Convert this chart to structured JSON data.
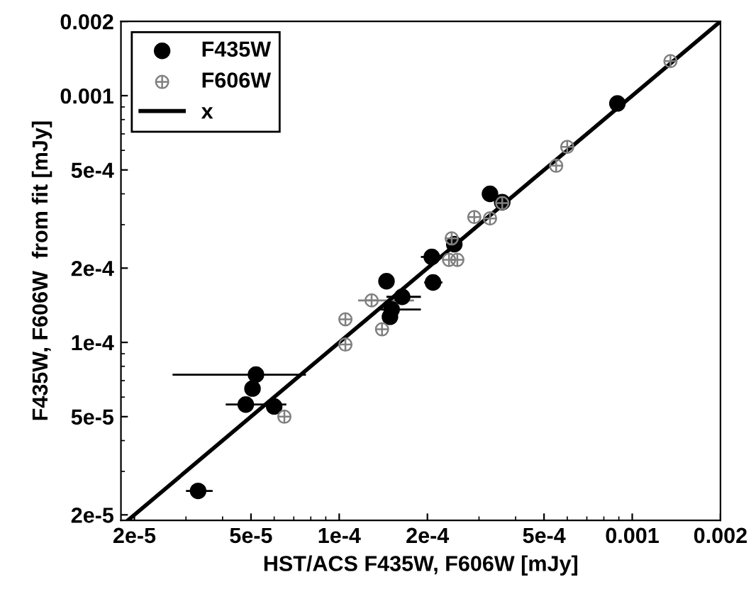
{
  "chart_data": {
    "type": "scatter",
    "xlabel": "HST/ACS F435W, F606W [mJy]",
    "ylabel": "F435W, F606W  from fit [mJy]",
    "log": "xy",
    "grid": false,
    "legend": "top left",
    "xlim": [
      1.8e-05,
      0.002
    ],
    "ylim": [
      1.9e-05,
      0.002
    ],
    "xticks": [
      {
        "value": 2e-05,
        "label": "2e-5"
      },
      {
        "value": 5e-05,
        "label": "5e-5"
      },
      {
        "value": 0.0001,
        "label": "1e-4"
      },
      {
        "value": 0.0002,
        "label": "2e-4"
      },
      {
        "value": 0.0005,
        "label": "5e-4"
      },
      0.001,
      0.002
    ],
    "yticks": [
      {
        "value": 2e-05,
        "label": "2e-5"
      },
      {
        "value": 5e-05,
        "label": "5e-5"
      },
      {
        "value": 0.0001,
        "label": "1e-4"
      },
      {
        "value": 0.0002,
        "label": "2e-4"
      },
      {
        "value": 0.0005,
        "label": "5e-4"
      },
      0.001,
      0.002
    ],
    "series": [
      {
        "name": "F435W",
        "marker": "circle",
        "color": "#000000",
        "x": [
          3.3e-05,
          5.2e-05,
          5.06e-05,
          4.8e-05,
          6e-05,
          0.000145,
          0.000164,
          0.000151,
          0.000149,
          0.000209,
          0.000207,
          0.000247,
          0.000327,
          0.00036,
          0.00089
        ],
        "values": [
          2.5e-05,
          7.4e-05,
          6.5e-05,
          5.6e-05,
          5.5e-05,
          0.000177,
          0.000153,
          0.000136,
          0.000127,
          0.000175,
          0.000222,
          0.00025,
          0.0004,
          0.00037,
          0.00093
        ],
        "xerrors": [
          [
            3e-05,
            3.7e-05
          ],
          [
            2.7e-05,
            7.7e-05
          ],
          null,
          [
            4.1e-05,
            6.6e-05
          ],
          null,
          null,
          [
            0.000145,
            0.00019
          ],
          [
            0.000135,
            0.00019
          ],
          null,
          [
            0.000195,
            0.000225
          ],
          [
            0.00019,
            0.000225
          ],
          null,
          null,
          null,
          null
        ]
      },
      {
        "name": "F606W",
        "marker": "cross",
        "color": "#808080",
        "x": [
          6.5e-05,
          0.000105,
          0.000105,
          0.000129,
          0.00014,
          0.000237,
          0.000253,
          0.000242,
          0.000289,
          0.000327,
          0.00036,
          0.00055,
          0.0006,
          0.00135
        ],
        "values": [
          5e-05,
          0.000124,
          9.8e-05,
          0.000148,
          0.000113,
          0.000216,
          0.000216,
          0.000264,
          0.000322,
          0.000318,
          0.000367,
          0.00052,
          0.00062,
          0.00138
        ],
        "xerrors": [
          null,
          null,
          null,
          [
            0.000116,
            0.00018
          ],
          null,
          null,
          null,
          null,
          null,
          null,
          null,
          null,
          null,
          null
        ]
      },
      {
        "name": "x",
        "type": "line",
        "marker": "none",
        "line_style": "solid",
        "color": "#000000",
        "x": [
          1.9e-05,
          0.002
        ],
        "values": [
          1.9e-05,
          0.002
        ]
      }
    ]
  }
}
